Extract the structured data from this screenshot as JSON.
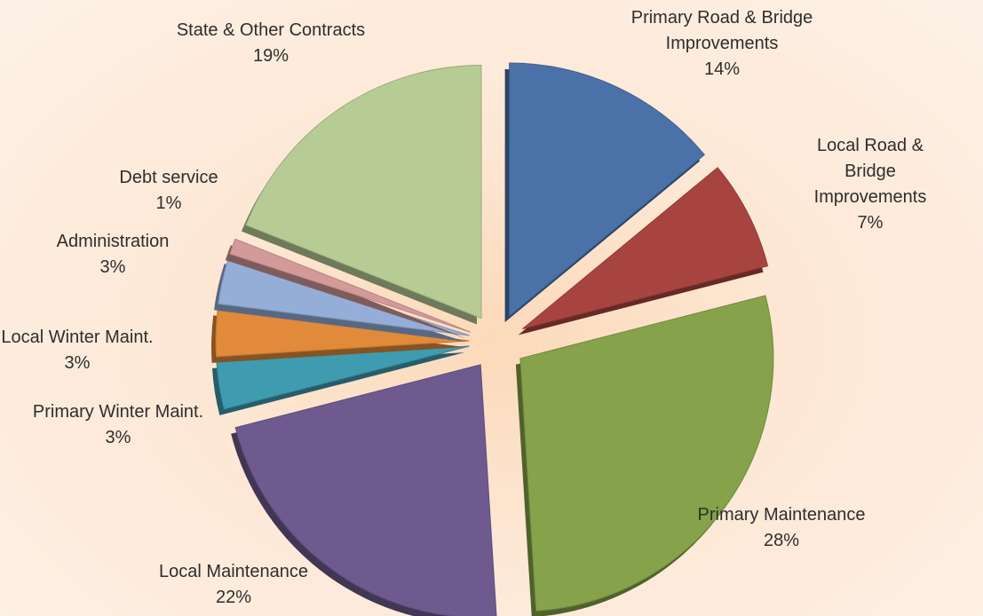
{
  "chart_data": {
    "type": "pie",
    "categories": [
      "Primary Road & Bridge Improvements",
      "Local Road & Bridge Improvements",
      "Primary Maintenance",
      "Local Maintenance",
      "Primary Winter Maint.",
      "Local Winter Maint.",
      "Administration",
      "Debt service",
      "State & Other Contracts"
    ],
    "values": [
      14,
      7,
      28,
      22,
      3,
      3,
      3,
      1,
      19
    ],
    "value_labels": [
      "14%",
      "7%",
      "28%",
      "22%",
      "3%",
      "3%",
      "3%",
      "1%",
      "19%"
    ],
    "colors": [
      "#4a72a8",
      "#a84440",
      "#86a24a",
      "#6e5a8e",
      "#3f9bb0",
      "#e08a3a",
      "#94aed8",
      "#d49a9a",
      "#b7cc94"
    ]
  }
}
